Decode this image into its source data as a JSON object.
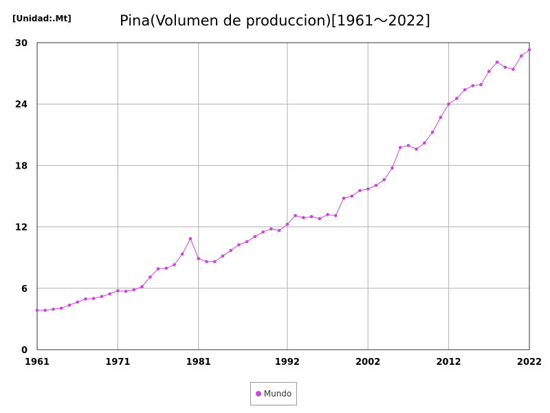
{
  "unit_label": "[Unidad:.Mt]",
  "chart_data": {
    "type": "line",
    "title": "Pina(Volumen de produccion)[1961～2022]",
    "xlabel": "",
    "ylabel": "",
    "xlim": [
      1961,
      2022
    ],
    "ylim": [
      0,
      30
    ],
    "x_ticks": [
      1961,
      1971,
      1981,
      1992,
      2002,
      2012,
      2022
    ],
    "y_ticks": [
      0,
      6,
      12,
      18,
      24,
      30
    ],
    "grid": true,
    "legend_position": "bottom-center",
    "series": [
      {
        "name": "Mundo",
        "color": "#cc44dd",
        "x": [
          1961,
          1962,
          1963,
          1964,
          1965,
          1966,
          1967,
          1968,
          1969,
          1970,
          1971,
          1972,
          1973,
          1974,
          1975,
          1976,
          1977,
          1978,
          1979,
          1980,
          1981,
          1982,
          1983,
          1984,
          1985,
          1986,
          1987,
          1988,
          1989,
          1990,
          1991,
          1992,
          1993,
          1994,
          1995,
          1996,
          1997,
          1998,
          1999,
          2000,
          2001,
          2002,
          2003,
          2004,
          2005,
          2006,
          2007,
          2008,
          2009,
          2010,
          2011,
          2012,
          2013,
          2014,
          2015,
          2016,
          2017,
          2018,
          2019,
          2020,
          2021,
          2022
        ],
        "values": [
          3.85,
          3.85,
          3.95,
          4.05,
          4.35,
          4.65,
          4.95,
          5.0,
          5.2,
          5.45,
          5.75,
          5.7,
          5.85,
          6.15,
          7.1,
          7.9,
          7.95,
          8.3,
          9.35,
          10.85,
          8.9,
          8.6,
          8.6,
          9.15,
          9.7,
          10.25,
          10.55,
          11.05,
          11.5,
          11.8,
          11.65,
          12.25,
          13.1,
          12.9,
          13.0,
          12.8,
          13.2,
          13.1,
          14.8,
          15.0,
          15.55,
          15.7,
          16.05,
          16.6,
          17.75,
          19.75,
          19.95,
          19.6,
          20.2,
          21.25,
          22.7,
          24.0,
          24.55,
          25.4,
          25.8,
          25.9,
          27.2,
          28.1,
          27.6,
          27.4,
          28.7,
          29.3
        ]
      }
    ]
  }
}
